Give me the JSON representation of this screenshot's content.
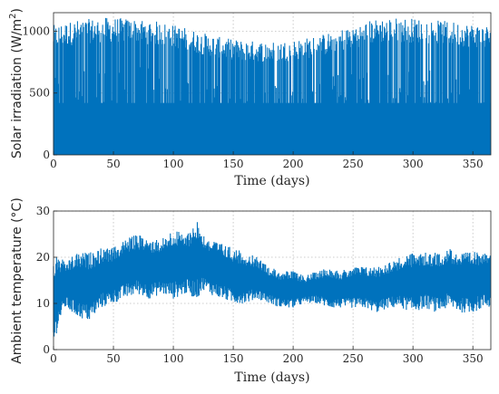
{
  "chart_data": [
    {
      "type": "area",
      "xlabel": "Time (days)",
      "ylabel_main": "Solar irradiation (W/m",
      "ylabel_sup": "2",
      "ylabel_tail": ")",
      "xlim": [
        0,
        365
      ],
      "ylim": [
        0,
        1150
      ],
      "xticks": [
        "0",
        "50",
        "100",
        "150",
        "200",
        "250",
        "300",
        "350"
      ],
      "yticks": [
        "0",
        "500",
        "1000"
      ],
      "color": "#0072bd",
      "grid": true,
      "series": [
        {
          "x": [
            0,
            10,
            20,
            30,
            40,
            50,
            60,
            70,
            80,
            90,
            100,
            110,
            120,
            130,
            140,
            150,
            160,
            170,
            180,
            190,
            200,
            210,
            220,
            230,
            240,
            250,
            260,
            270,
            280,
            290,
            300,
            310,
            320,
            330,
            340,
            350,
            360,
            365
          ],
          "daily_peak": [
            1050,
            1070,
            1090,
            1100,
            1110,
            1110,
            1105,
            1100,
            1090,
            1075,
            1055,
            1030,
            1000,
            975,
            950,
            935,
            925,
            920,
            915,
            920,
            930,
            945,
            965,
            990,
            1020,
            1050,
            1080,
            1100,
            1110,
            1110,
            1105,
            1100,
            1090,
            1080,
            1070,
            1060,
            1050,
            1050
          ]
        }
      ]
    },
    {
      "type": "line",
      "xlabel": "Time (days)",
      "ylabel": "Ambient temperature (°C)",
      "xlim": [
        0,
        365
      ],
      "ylim": [
        0,
        30
      ],
      "xticks": [
        "0",
        "50",
        "100",
        "150",
        "200",
        "250",
        "300",
        "350"
      ],
      "yticks": [
        "0",
        "10",
        "20",
        "30"
      ],
      "color": "#0072bd",
      "grid": true,
      "series": [
        {
          "x": [
            0,
            5,
            10,
            20,
            30,
            40,
            50,
            60,
            70,
            80,
            90,
            100,
            110,
            120,
            125,
            130,
            140,
            150,
            160,
            170,
            180,
            190,
            200,
            210,
            220,
            230,
            240,
            250,
            260,
            270,
            280,
            290,
            300,
            310,
            320,
            330,
            340,
            350,
            360,
            365
          ],
          "daily_min": [
            1,
            6,
            9,
            7,
            6,
            9,
            10,
            11,
            12,
            11,
            12,
            11,
            12,
            11,
            13,
            12,
            11,
            10,
            10,
            11,
            10,
            9,
            9,
            10,
            10,
            9,
            9,
            9,
            9,
            8,
            9,
            9,
            8,
            9,
            8,
            9,
            8,
            8,
            9,
            9
          ],
          "daily_max": [
            20,
            20,
            19,
            21,
            21,
            22,
            22,
            24,
            25,
            24,
            24,
            26,
            25,
            28,
            25,
            24,
            23,
            22,
            21,
            20,
            18,
            17,
            17,
            16,
            17,
            18,
            17,
            18,
            18,
            18,
            19,
            20,
            21,
            21,
            21,
            22,
            21,
            21,
            22,
            22
          ]
        }
      ]
    }
  ]
}
